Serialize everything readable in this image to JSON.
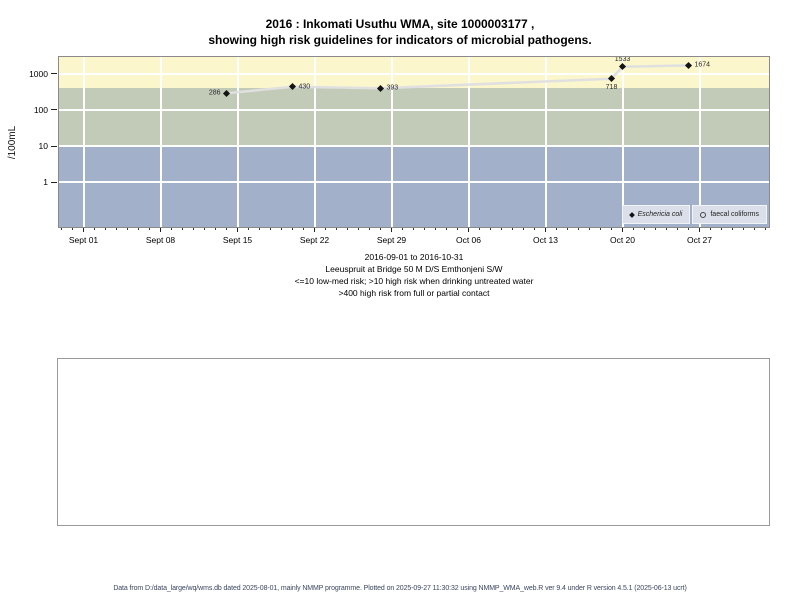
{
  "title": {
    "line1": "2016 : Inkomati Usuthu WMA, site 1000003177 ,",
    "line2": "showing high risk guidelines for indicators of microbial pathogens."
  },
  "chart_data": {
    "type": "line",
    "y_axis_label": "/100mL",
    "y_scale": "log10",
    "y_ticks": [
      1000,
      100,
      10,
      1
    ],
    "x_range": [
      "2016-08-30",
      "2016-11-01"
    ],
    "x_ticks": [
      {
        "date": "2016-09-01",
        "label": "Sept 01"
      },
      {
        "date": "2016-09-08",
        "label": "Sept 08"
      },
      {
        "date": "2016-09-15",
        "label": "Sept 15"
      },
      {
        "date": "2016-09-22",
        "label": "Sept 22"
      },
      {
        "date": "2016-09-29",
        "label": "Sept 29"
      },
      {
        "date": "2016-10-06",
        "label": "Oct 06"
      },
      {
        "date": "2016-10-13",
        "label": "Oct 13"
      },
      {
        "date": "2016-10-20",
        "label": "Oct 20"
      },
      {
        "date": "2016-10-27",
        "label": "Oct 27"
      }
    ],
    "bands": [
      {
        "name": "high-risk-contact",
        "from": 400,
        "to": 3200,
        "color": "#FBF6CB"
      },
      {
        "name": "high-risk-drinking",
        "from": 10,
        "to": 400,
        "color": "#C2CBB8"
      },
      {
        "name": "low-med-risk",
        "from": 0.06,
        "to": 10,
        "color": "#A3B0CA"
      }
    ],
    "line_color": "#E0E0E0",
    "marker_color": "#141414",
    "legend_bg": "#DBDFE9",
    "series": [
      {
        "name": "Eschericia coli",
        "marker": "filled-diamond",
        "points": [
          {
            "date": "2016-09-14",
            "value": 286,
            "label": "286",
            "label_pos": "left"
          },
          {
            "date": "2016-09-20",
            "value": 430,
            "label": "430",
            "label_pos": "right"
          },
          {
            "date": "2016-09-28",
            "value": 393,
            "label": "393",
            "label_pos": "right"
          },
          {
            "date": "2016-10-19",
            "value": 718,
            "label": "718",
            "label_pos": "below"
          },
          {
            "date": "2016-10-20",
            "value": 1533,
            "label": "1533",
            "label_pos": "above"
          },
          {
            "date": "2016-10-26",
            "value": 1674,
            "label": "1674",
            "label_pos": "right"
          }
        ]
      },
      {
        "name": "faecal coliforms",
        "marker": "open-circle",
        "points": []
      }
    ]
  },
  "caption": {
    "lines": [
      "2016-09-01 to 2016-10-31",
      "Leeuspruit at Bridge 50 M D/S Emthonjeni S/W",
      "<=10 low-med risk; >10 high risk when drinking untreated water",
      ">400 high risk from full or partial contact"
    ]
  },
  "footer": {
    "text": "Data from D:/data_large/wq/wms.db dated 2025-08-01, mainly NMMP programme. Plotted on 2025-09-27 11:30:32 using NMMP_WMA_web.R ver 9.4 under R version 4.5.1 (2025-06-13 ucrt)"
  }
}
